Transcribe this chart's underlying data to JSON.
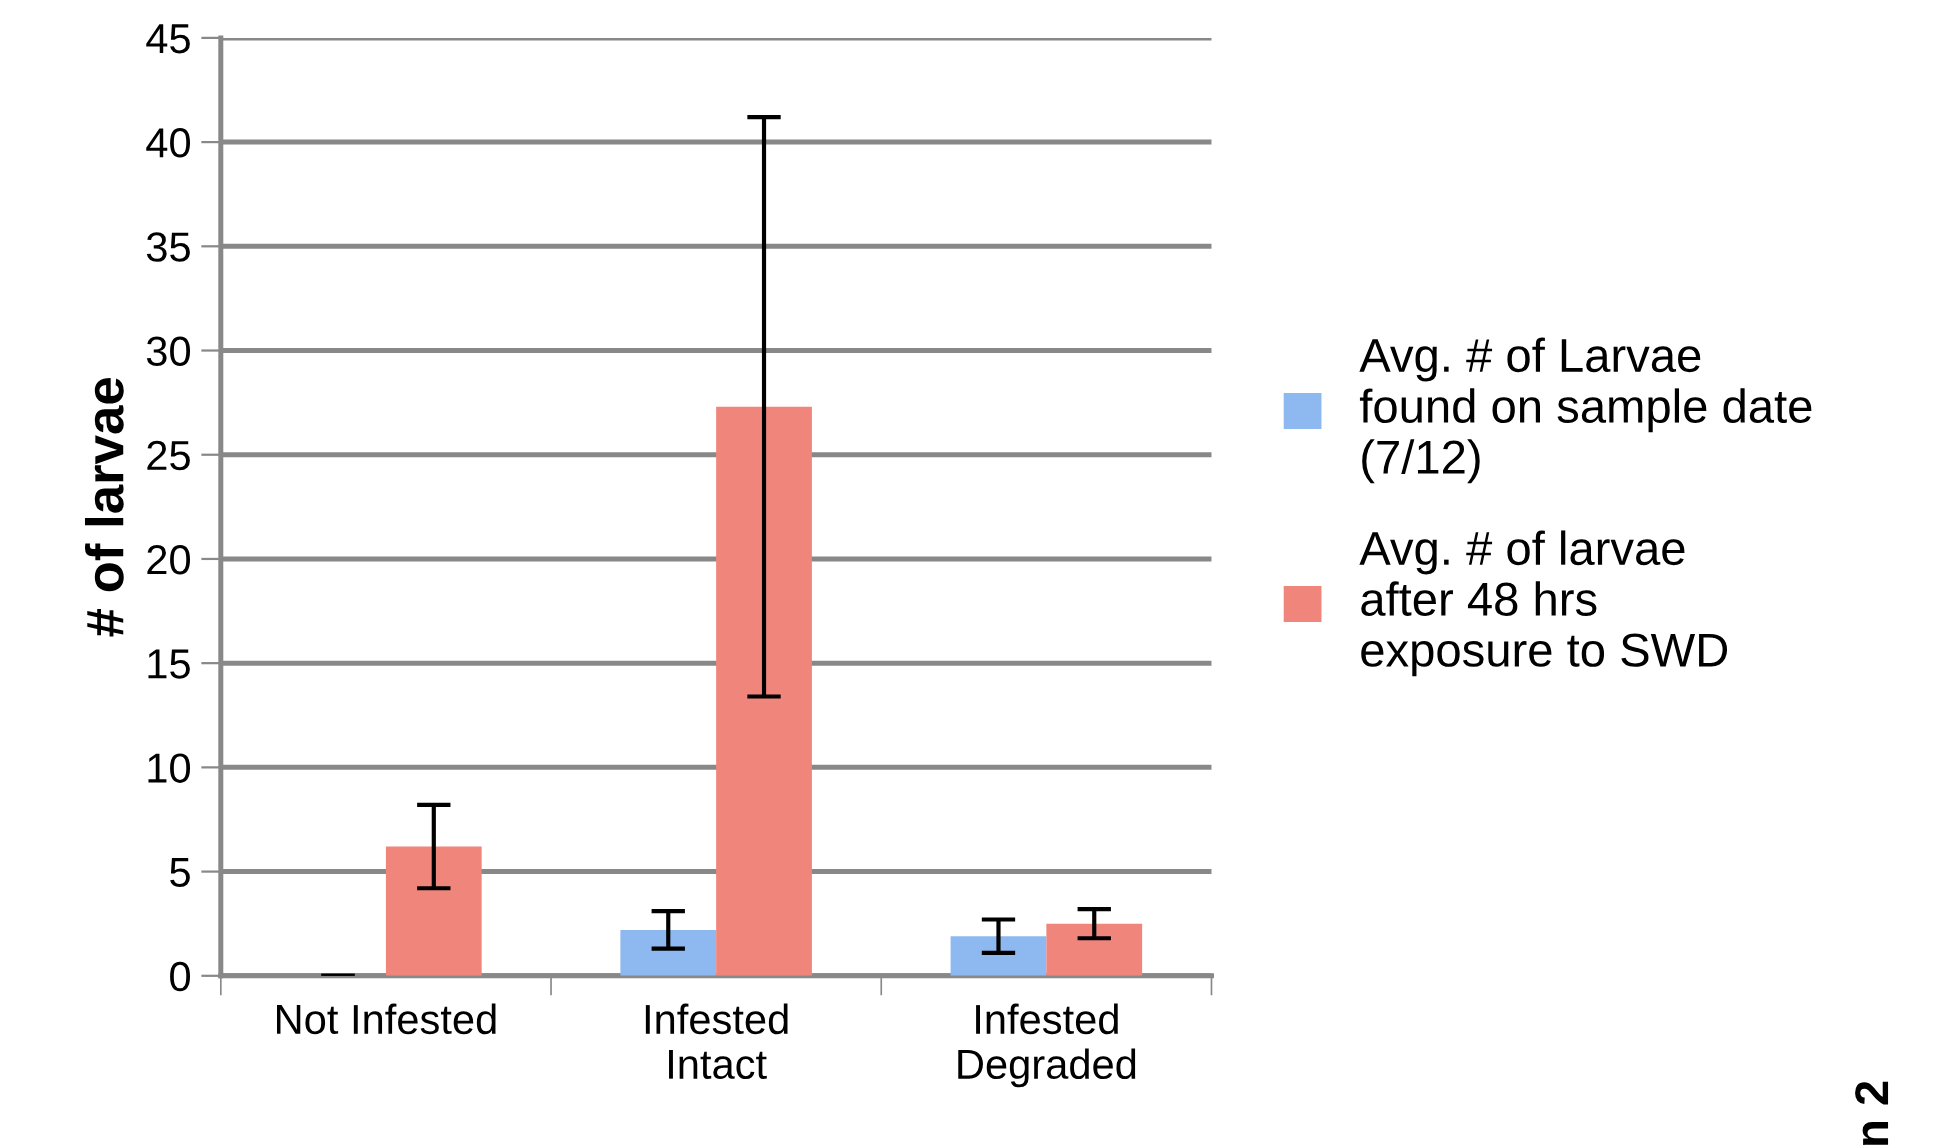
{
  "chart_data": {
    "type": "bar",
    "ylabel": "# of larvae",
    "categories": [
      "Not Infested",
      "Infested\nIntact",
      "Infested\nDegraded"
    ],
    "series": [
      {
        "name": "Avg. # of Larvae found on sample date (7/12)",
        "color": "#8db8f0",
        "values": [
          0,
          2.2,
          1.9
        ],
        "errors": [
          null,
          0.9,
          0.8
        ]
      },
      {
        "name": "Avg. # of larvae after 48 hrs exposure to SWD",
        "color": "#f0857c",
        "values": [
          6.2,
          27.3,
          2.5
        ],
        "errors": [
          2.0,
          13.9,
          0.7
        ]
      }
    ],
    "ylim": [
      0,
      45
    ],
    "yticks": [
      0,
      5,
      10,
      15,
      20,
      25,
      30,
      35,
      40,
      45
    ],
    "grid": "y",
    "legend": "right",
    "annotations": [
      "n 2"
    ]
  }
}
